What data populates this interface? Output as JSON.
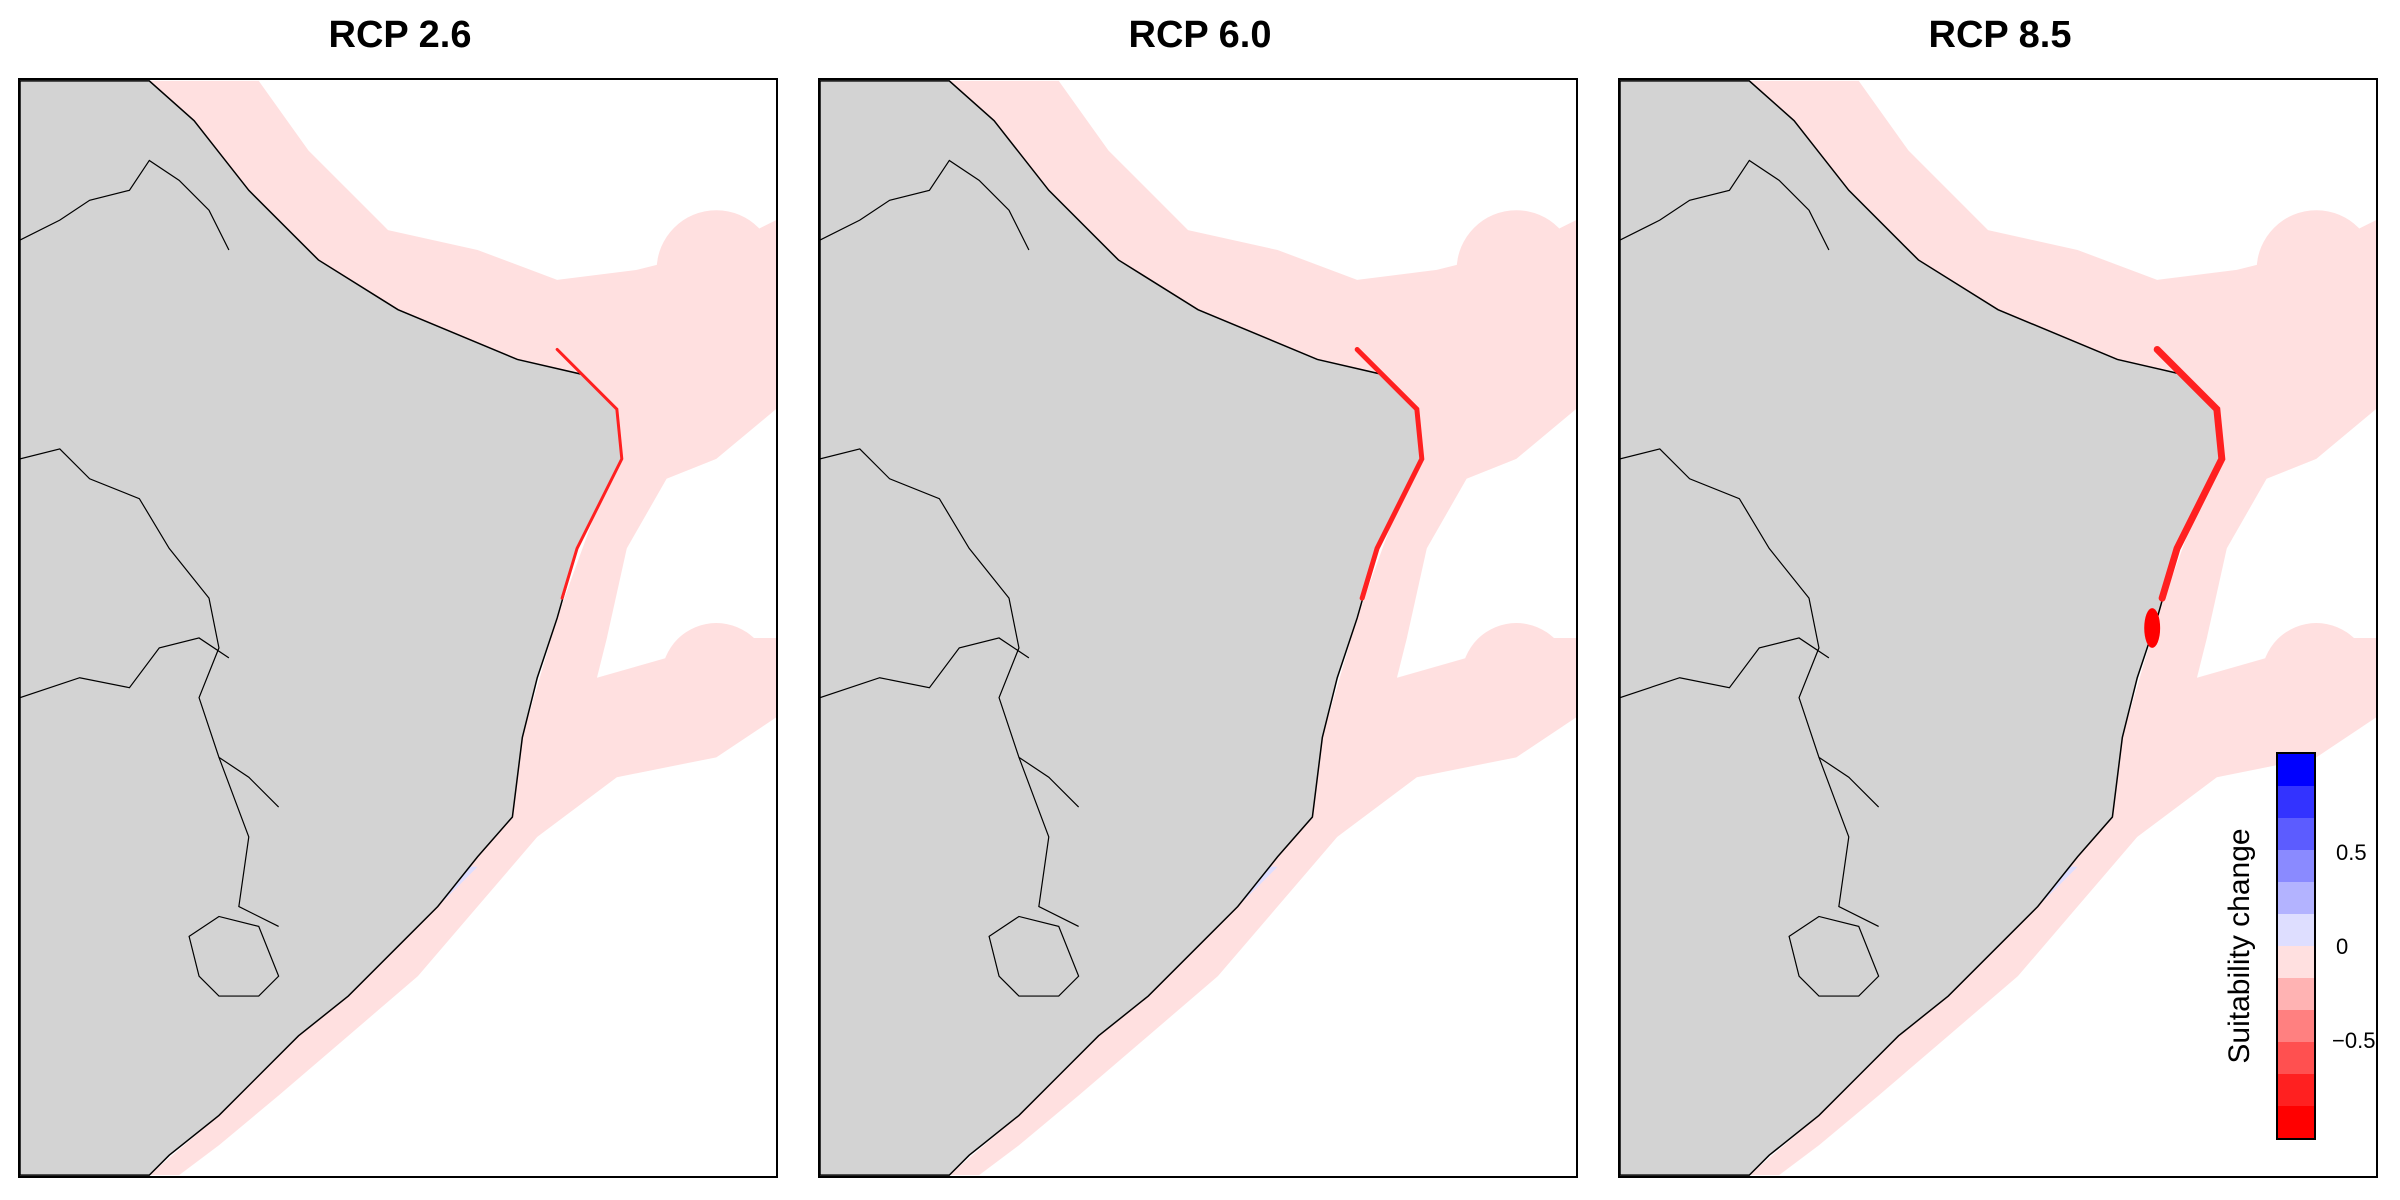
{
  "panels": [
    {
      "title": "RCP 2.6"
    },
    {
      "title": "RCP 6.0"
    },
    {
      "title": "RCP 8.5"
    }
  ],
  "legend": {
    "title": "Suitability change",
    "ticks": [
      "0.5",
      "0",
      "−0.5"
    ],
    "bins": [
      "#0000ff",
      "#3333ff",
      "#5c5cff",
      "#8a8aff",
      "#b3b3ff",
      "#dedeff",
      "#ffe0e0",
      "#ffb3b3",
      "#ff8080",
      "#ff5050",
      "#ff2020",
      "#ff0000"
    ]
  },
  "colors": {
    "land": "#d3d3d3",
    "ocean_light_red": "#ffe0e0",
    "ocean_light_blue": "#dedeff",
    "coast_red": "#ff2020",
    "border": "#000000"
  }
}
